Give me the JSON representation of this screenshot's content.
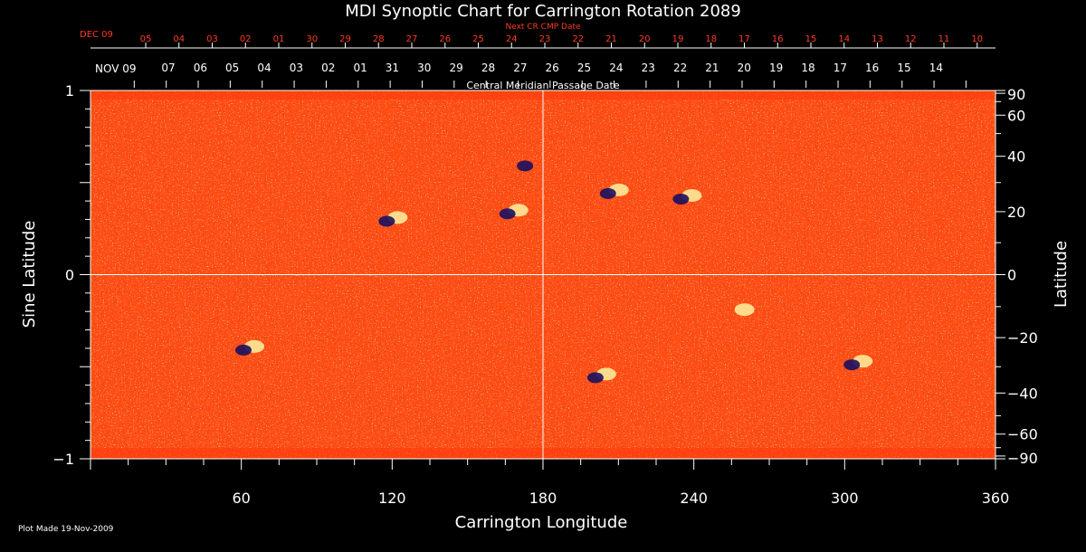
{
  "chart_data": {
    "type": "heatmap",
    "title": "MDI Synoptic Chart for Carrington Rotation 2089",
    "xlabel": "Carrington Longitude",
    "ylabel_left": "Sine Latitude",
    "ylabel_right": "Latitude",
    "xlim": [
      0,
      360
    ],
    "ylim": [
      -1,
      1
    ],
    "x_ticks": [
      60,
      120,
      180,
      240,
      300,
      360
    ],
    "y_ticks_left": [
      1,
      0,
      -1
    ],
    "y_ticks_right": [
      90,
      60,
      40,
      20,
      0,
      -20,
      -40,
      -60,
      -90
    ],
    "gridlines": {
      "longitude": 180,
      "sine_latitude": 0
    },
    "top_axis": {
      "label": "Central Meridian Passage Date",
      "start_label": "NOV 09",
      "dates": [
        "07",
        "06",
        "05",
        "04",
        "03",
        "02",
        "01",
        "31",
        "30",
        "29",
        "28",
        "27",
        "26",
        "25",
        "24",
        "23",
        "22",
        "21",
        "20",
        "19",
        "18",
        "17",
        "16",
        "15",
        "14"
      ]
    },
    "next_cr_axis": {
      "label": "Next CR CMP Date",
      "start_label": "DEC 09",
      "dates": [
        "05",
        "04",
        "03",
        "02",
        "01",
        "30",
        "29",
        "28",
        "27",
        "26",
        "25",
        "24",
        "23",
        "22",
        "21",
        "20",
        "19",
        "18",
        "17",
        "16",
        "15",
        "14",
        "13",
        "12",
        "11",
        "10"
      ]
    },
    "colors": {
      "background_field": "#ff4a10",
      "positive_polarity": "#fff2a0",
      "negative_polarity": "#1a1060",
      "next_cr_text": "#ff3b1f",
      "axis": "#ffffff"
    },
    "features": [
      {
        "polarity": "mixed",
        "lon": 203,
        "sin_lat": -0.55
      },
      {
        "polarity": "mixed",
        "lon": 305,
        "sin_lat": -0.48
      },
      {
        "polarity": "mixed",
        "lon": 237,
        "sin_lat": 0.42
      },
      {
        "polarity": "mixed",
        "lon": 208,
        "sin_lat": 0.45
      },
      {
        "polarity": "mixed",
        "lon": 168,
        "sin_lat": 0.34
      },
      {
        "polarity": "negative",
        "lon": 175,
        "sin_lat": 0.6
      },
      {
        "polarity": "mixed",
        "lon": 120,
        "sin_lat": 0.3
      },
      {
        "polarity": "positive",
        "lon": 258,
        "sin_lat": -0.2
      },
      {
        "polarity": "mixed",
        "lon": 63,
        "sin_lat": -0.4
      }
    ]
  },
  "footer": {
    "plot_made": "Plot Made 19-Nov-2009"
  }
}
